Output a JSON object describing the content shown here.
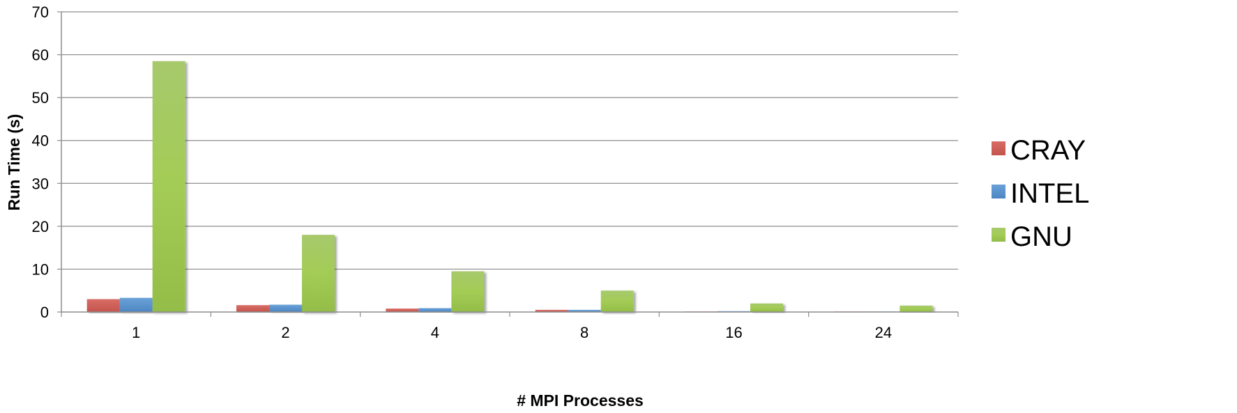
{
  "chart_data": {
    "type": "bar",
    "title": "",
    "xlabel": "# MPI Processes",
    "ylabel": "Run Time (s)",
    "categories": [
      "1",
      "2",
      "4",
      "8",
      "16",
      "24"
    ],
    "ylim": [
      0,
      70
    ],
    "yticks": [
      0,
      10,
      20,
      30,
      40,
      50,
      60,
      70
    ],
    "grid": true,
    "legend_position": "right",
    "series": [
      {
        "name": "CRAY",
        "color": "#d0635c",
        "values": [
          3.0,
          1.6,
          0.8,
          0.5,
          0.1,
          0.1
        ]
      },
      {
        "name": "INTEL",
        "color": "#5b95cf",
        "values": [
          3.3,
          1.7,
          0.9,
          0.5,
          0.2,
          0.1
        ]
      },
      {
        "name": "GNU",
        "color": "#9bc45c",
        "values": [
          58.5,
          18.0,
          9.5,
          5.0,
          2.0,
          1.5
        ]
      }
    ]
  }
}
